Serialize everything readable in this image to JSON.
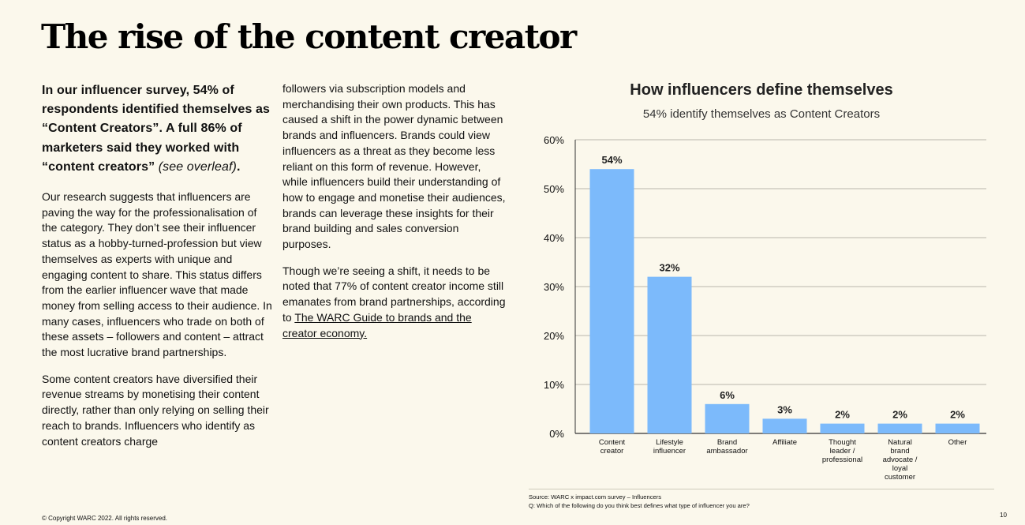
{
  "page": {
    "title": "The rise of the content creator",
    "copyright": "© Copyright WARC 2022. All rights reserved.",
    "page_number": "10"
  },
  "body": {
    "lead_bold": "In our influencer survey, 54% of respondents identified themselves as “Content Creators”. A full 86% of marketers said they worked with “content creators”",
    "lead_italic": " (see overleaf)",
    "lead_end": ".",
    "para1": "Our research suggests that influencers are paving the way for the professionalisation of the category. They don’t see their influencer status as a hobby-turned-profession but view themselves as experts with unique and engaging content to share. This status differs from the earlier influencer wave that made money from selling access to their audience. In many cases, influencers who trade on both of these assets – followers and content – attract the most lucrative brand partnerships.",
    "para2": "Some content creators have diversified their revenue streams by monetising their content directly, rather than only relying on selling their reach to brands. Influencers who identify as content creators charge",
    "para3": "followers via subscription models and merchandising their own products. This has caused a shift in the power dynamic between brands and influencers. Brands could view influencers as a threat as they become less reliant on this form of revenue. However, while influencers build their understanding of how to engage and monetise their audiences, brands can leverage these insights for their brand building and sales conversion purposes.",
    "para4_start": "Though we’re seeing a shift, it needs to be noted that 77% of content creator income still emanates from brand partnerships, according to ",
    "para4_link": "The WARC Guide to brands and the creator economy."
  },
  "chart_data": {
    "type": "bar",
    "title": "How influencers define themselves",
    "subtitle": "54% identify themselves as Content Creators",
    "categories": [
      [
        "Content",
        "creator"
      ],
      [
        "Lifestyle",
        "influencer"
      ],
      [
        "Brand",
        "ambassador"
      ],
      [
        "Affiliate"
      ],
      [
        "Thought",
        "leader /",
        "professional"
      ],
      [
        "Natural",
        "brand",
        "advocate /",
        "loyal",
        "customer"
      ],
      [
        "Other"
      ]
    ],
    "values": [
      54,
      32,
      6,
      3,
      2,
      2,
      2
    ],
    "value_labels": [
      "54%",
      "32%",
      "6%",
      "3%",
      "2%",
      "2%",
      "2%"
    ],
    "yticks": [
      0,
      10,
      20,
      30,
      40,
      50,
      60
    ],
    "ytick_labels": [
      "0%",
      "10%",
      "20%",
      "30%",
      "40%",
      "50%",
      "60%"
    ],
    "ylim": [
      0,
      60
    ],
    "xlabel": "",
    "ylabel": "",
    "grid": true,
    "bar_color": "#7cbafb"
  },
  "footnote": {
    "source": "Source: WARC x impact.com survey – Influencers",
    "question": "Q: Which of the following do you think best defines what type of influencer you are?"
  }
}
